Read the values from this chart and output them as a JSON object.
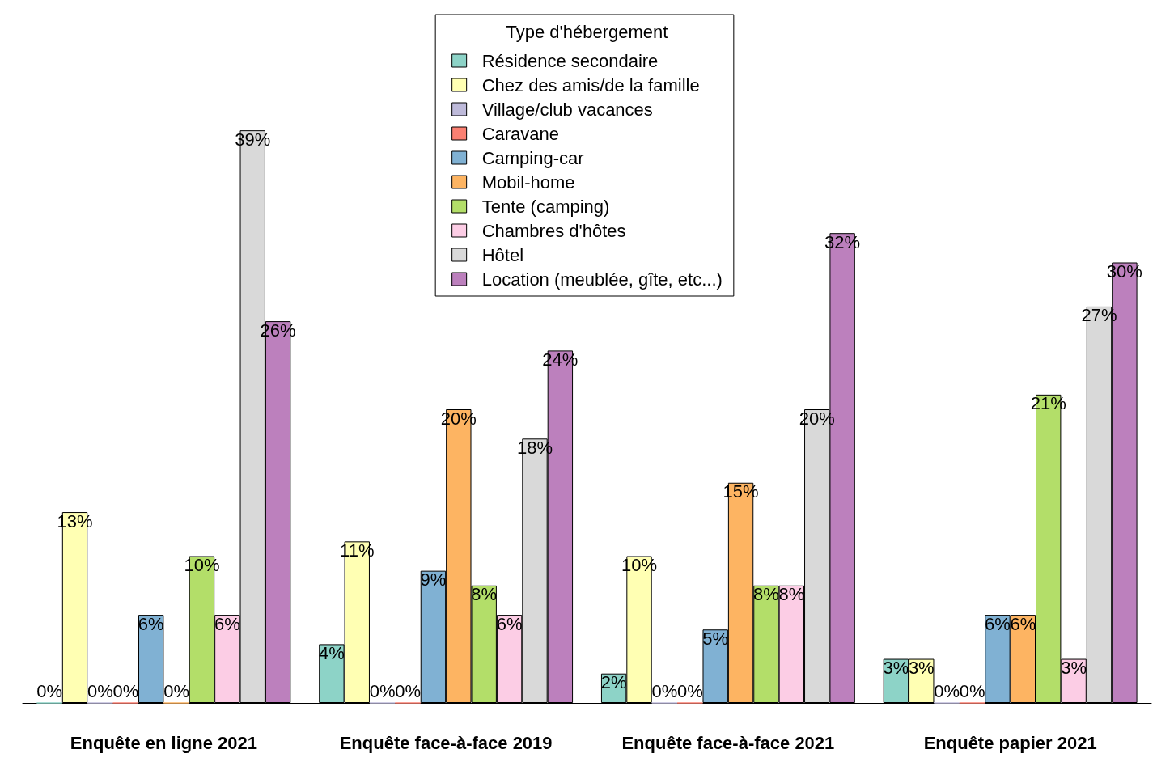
{
  "chart_data": {
    "type": "bar",
    "legend_title": "Type d'hébergement",
    "legend": "top",
    "data_labels": false,
    "grid": false,
    "categories": [
      "Enquête en ligne 2021",
      "Enquête face-à-face 2019",
      "Enquête face-à-face 2021",
      "Enquête papier 2021"
    ],
    "series": [
      {
        "name": "Résidence secondaire",
        "color": "#8dd3c7",
        "values": [
          0,
          4,
          2,
          3
        ],
        "value_labels": [
          "0%",
          "4%",
          "2%",
          "3%"
        ]
      },
      {
        "name": "Chez des amis/de la famille",
        "color": "#ffffb3",
        "values": [
          13,
          11,
          10,
          3
        ],
        "value_labels": [
          "13%",
          "11%",
          "10%",
          "3%"
        ]
      },
      {
        "name": "Village/club vacances",
        "color": "#bebada",
        "values": [
          0,
          0,
          0,
          0
        ],
        "value_labels": [
          "0%",
          "0%",
          "0%",
          "0%"
        ]
      },
      {
        "name": "Caravane",
        "color": "#fb8072",
        "values": [
          0,
          0,
          0,
          0
        ],
        "value_labels": [
          "0%",
          "0%",
          "0%",
          "0%"
        ]
      },
      {
        "name": "Camping-car",
        "color": "#80b1d3",
        "values": [
          6,
          9,
          5,
          6
        ],
        "value_labels": [
          "6%",
          "9%",
          "5%",
          "6%"
        ]
      },
      {
        "name": "Mobil-home",
        "color": "#fdb462",
        "values": [
          0,
          20,
          15,
          6
        ],
        "value_labels": [
          "0%",
          "20%",
          "15%",
          "6%"
        ]
      },
      {
        "name": "Tente (camping)",
        "color": "#b3de69",
        "values": [
          10,
          8,
          8,
          21
        ],
        "value_labels": [
          "10%",
          "8%",
          "8%",
          "21%"
        ]
      },
      {
        "name": "Chambres d'hôtes",
        "color": "#fccde5",
        "values": [
          6,
          6,
          8,
          3
        ],
        "value_labels": [
          "6%",
          "6%",
          "8%",
          "3%"
        ]
      },
      {
        "name": "Hôtel",
        "color": "#d9d9d9",
        "values": [
          39,
          18,
          20,
          27
        ],
        "value_labels": [
          "39%",
          "18%",
          "20%",
          "27%"
        ]
      },
      {
        "name": "Location (meublée, gîte, etc...)",
        "color": "#bc80bd",
        "values": [
          26,
          24,
          32,
          30
        ],
        "value_labels": [
          "26%",
          "24%",
          "32%",
          "30%"
        ]
      }
    ]
  }
}
